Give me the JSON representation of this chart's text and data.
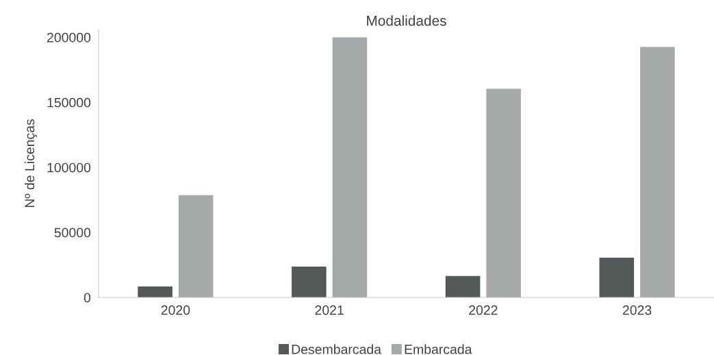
{
  "chart_data": {
    "type": "bar",
    "title": "Modalidades",
    "ylabel": "Nº de Licenças",
    "categories": [
      "2020",
      "2021",
      "2022",
      "2023"
    ],
    "series": [
      {
        "name": "Desembarcada",
        "color": "#555858",
        "values": [
          8400,
          23700,
          16400,
          30600
        ]
      },
      {
        "name": "Embarcada",
        "color": "#a6a9aa",
        "values": [
          78600,
          200000,
          160400,
          192600
        ]
      }
    ],
    "ylim": [
      0,
      206000
    ],
    "yticks": [
      0,
      50000,
      100000,
      150000,
      200000
    ],
    "grid": false,
    "legend": "bottom"
  }
}
